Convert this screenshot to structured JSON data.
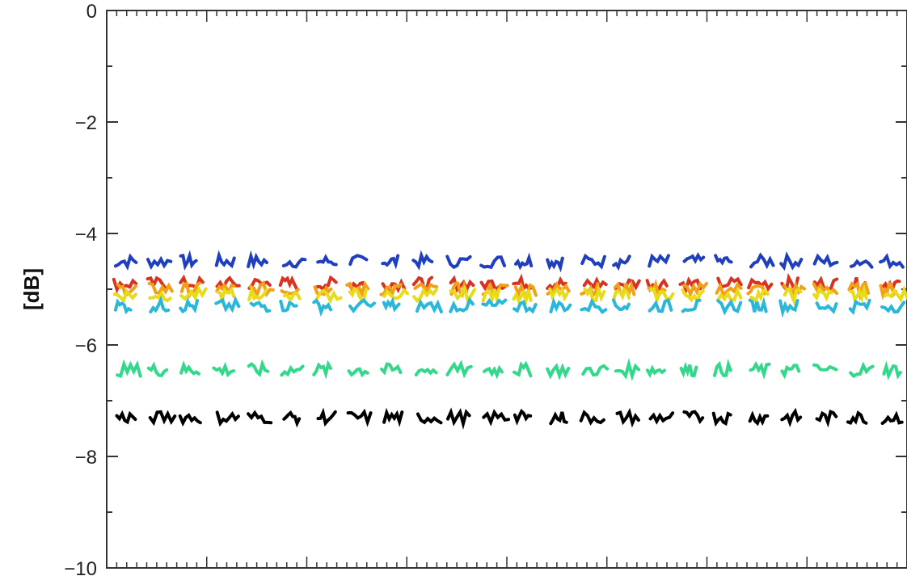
{
  "chart_data": {
    "type": "scatter",
    "title": "",
    "xlabel": "",
    "ylabel": "[dB]",
    "ylim": [
      -10,
      0
    ],
    "yticks": [
      0,
      -2,
      -4,
      -6,
      -8,
      -10
    ],
    "ytick_labels": [
      "0",
      "−2",
      "−4",
      "−6",
      "−8",
      "−10"
    ],
    "x_major_count": 8,
    "grid": false,
    "legend": "none",
    "segments": 24,
    "series": [
      {
        "color": "#1f3fbf",
        "level": -4.5
      },
      {
        "color": "#d9321f",
        "level": -4.9
      },
      {
        "color": "#f2a019",
        "level": -5.0
      },
      {
        "color": "#e8dc1a",
        "level": -5.1
      },
      {
        "color": "#2bb7d9",
        "level": -5.3
      },
      {
        "color": "#33d98a",
        "level": -6.45
      },
      {
        "color": "#000000",
        "level": -7.3
      }
    ]
  }
}
